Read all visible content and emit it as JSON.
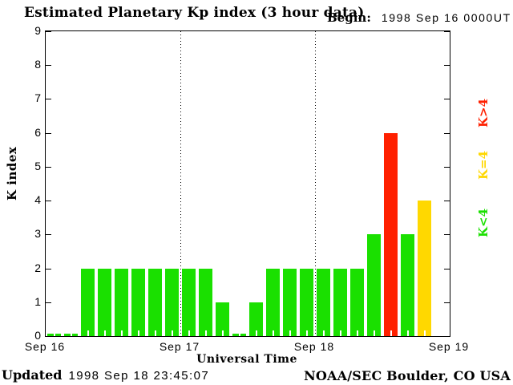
{
  "title": "Estimated Planetary Kp index (3 hour data)",
  "begin": {
    "label": "Begin:",
    "value": "1998 Sep 16 0000UT"
  },
  "legend": [
    {
      "label": "K>4",
      "color": "#ff2000"
    },
    {
      "label": "K=4",
      "color": "#ffd800"
    },
    {
      "label": "K<4",
      "color": "#1ae000"
    }
  ],
  "footer": {
    "updated_label": "Updated",
    "updated_value": "1998 Sep 18 23:45:07",
    "credit": "NOAA/SEC Boulder, CO USA"
  },
  "chart_data": {
    "type": "bar",
    "title": "Estimated Planetary Kp index (3 hour data)",
    "xlabel": "Universal Time",
    "ylabel": "K index",
    "ylim": [
      0,
      9
    ],
    "y_ticks": [
      0,
      1,
      2,
      3,
      4,
      5,
      6,
      7,
      8,
      9
    ],
    "x_tick_labels": [
      "Sep 16",
      "Sep 17",
      "Sep 18",
      "Sep 19"
    ],
    "interval_hours": 3,
    "begin": "1998 Sep 16 0000UT",
    "grid": "dotted vertical lines at day boundaries",
    "legend_position": "right, rotated",
    "values": [
      0,
      0,
      2,
      2,
      2,
      2,
      2,
      2,
      2,
      2,
      1,
      0,
      1,
      2,
      2,
      2,
      2,
      2,
      2,
      3,
      6,
      3,
      4
    ],
    "series": [
      {
        "name": "Sep 16",
        "values": [
          0,
          0,
          2,
          2,
          2,
          2,
          2,
          2
        ]
      },
      {
        "name": "Sep 17",
        "values": [
          2,
          2,
          1,
          0,
          1,
          2,
          2,
          2
        ]
      },
      {
        "name": "Sep 18",
        "values": [
          2,
          2,
          2,
          3,
          6,
          3,
          4
        ]
      }
    ],
    "color_rule": {
      "lt4": "#1ae000",
      "eq4": "#ffd800",
      "gt4": "#ff2000"
    }
  }
}
